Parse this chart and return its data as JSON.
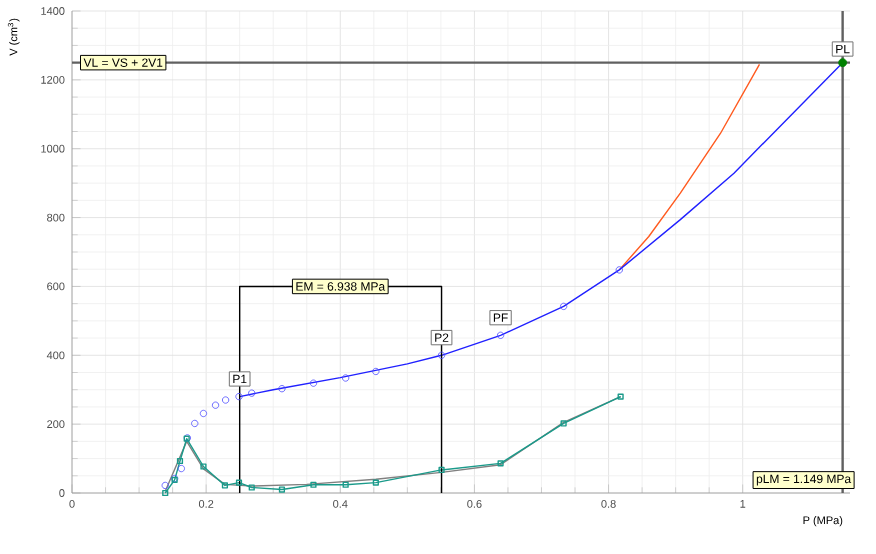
{
  "chart_data": {
    "type": "line",
    "xlabel": "P (MPa)",
    "ylabel": "V (cm$^{3}$)",
    "xlim": [
      0,
      1.16
    ],
    "ylim": [
      0,
      1400
    ],
    "xticks": [
      0,
      0.2,
      0.4,
      0.6,
      0.8,
      1
    ],
    "yticks": [
      0,
      200,
      400,
      600,
      800,
      1000,
      1200,
      1400
    ],
    "grid": true,
    "series": [
      {
        "type": "scatter",
        "color": "#4a4aff",
        "marker": "circle",
        "x": [
          0.139,
          0.153,
          0.163,
          0.172,
          0.183,
          0.196,
          0.214,
          0.229,
          0.249,
          0.268,
          0.313,
          0.36,
          0.408,
          0.453,
          0.551,
          0.639,
          0.733,
          0.816
        ],
        "values": [
          22,
          42,
          71,
          160,
          202,
          231,
          255,
          270,
          280,
          290,
          303,
          319,
          334,
          353,
          400,
          458,
          542,
          648
        ]
      },
      {
        "color": "#ff5a1f",
        "x": [
          0.816,
          0.86,
          0.907,
          0.967,
          1.025
        ],
        "values": [
          648,
          745,
          871,
          1045,
          1245
        ]
      },
      {
        "color": "#2020ff",
        "x": [
          0.25,
          0.3,
          0.4,
          0.5,
          0.551,
          0.639,
          0.733,
          0.816,
          0.907,
          0.987,
          1.149
        ],
        "values": [
          280,
          300,
          335,
          375,
          400,
          458,
          542,
          648,
          794,
          929,
          1250
        ]
      },
      {
        "color": "#808080",
        "x": [
          0.139,
          0.171,
          0.196,
          0.228,
          0.268,
          0.35,
          0.453,
          0.551,
          0.639,
          0.733,
          0.818
        ],
        "values": [
          5,
          150,
          70,
          25,
          20,
          25,
          40,
          60,
          82,
          205,
          280
        ]
      },
      {
        "color": "#1a9a8a",
        "marker": "square",
        "x": [
          0.139,
          0.153,
          0.161,
          0.171,
          0.196,
          0.228,
          0.249,
          0.268,
          0.313,
          0.36,
          0.408,
          0.453,
          0.551,
          0.639,
          0.733,
          0.818
        ],
        "values": [
          0,
          38,
          93,
          158,
          77,
          22,
          30,
          16,
          10,
          24,
          24,
          30,
          67,
          86,
          202,
          280
        ]
      },
      {
        "color": "#000000",
        "x": [
          0.25,
          0.25,
          0.551,
          0.551
        ],
        "values": [
          0,
          600,
          600,
          0
        ]
      },
      {
        "type": "scatter",
        "color": "#008000",
        "marker": "circle",
        "x": [
          1.149
        ],
        "values": [
          1250
        ]
      }
    ],
    "ref_lines": [
      {
        "axis": "y",
        "value": 1250,
        "color": "#606060"
      },
      {
        "axis": "x",
        "value": 1.149,
        "color": "#606060"
      }
    ],
    "annotations": [
      "VL = VS + 2V1",
      {
        "text": "PL",
        "x": 1.149,
        "y": 1250
      },
      {
        "text": "EM = 6.938 MPa",
        "x": 0.4,
        "y": 600
      },
      {
        "text": "P1",
        "x": 0.25,
        "y": 280
      },
      {
        "text": "P2",
        "x": 0.551,
        "y": 400
      },
      {
        "text": "PF",
        "x": 0.639,
        "y": 458
      },
      "pLM = 1.149 MPa"
    ]
  }
}
